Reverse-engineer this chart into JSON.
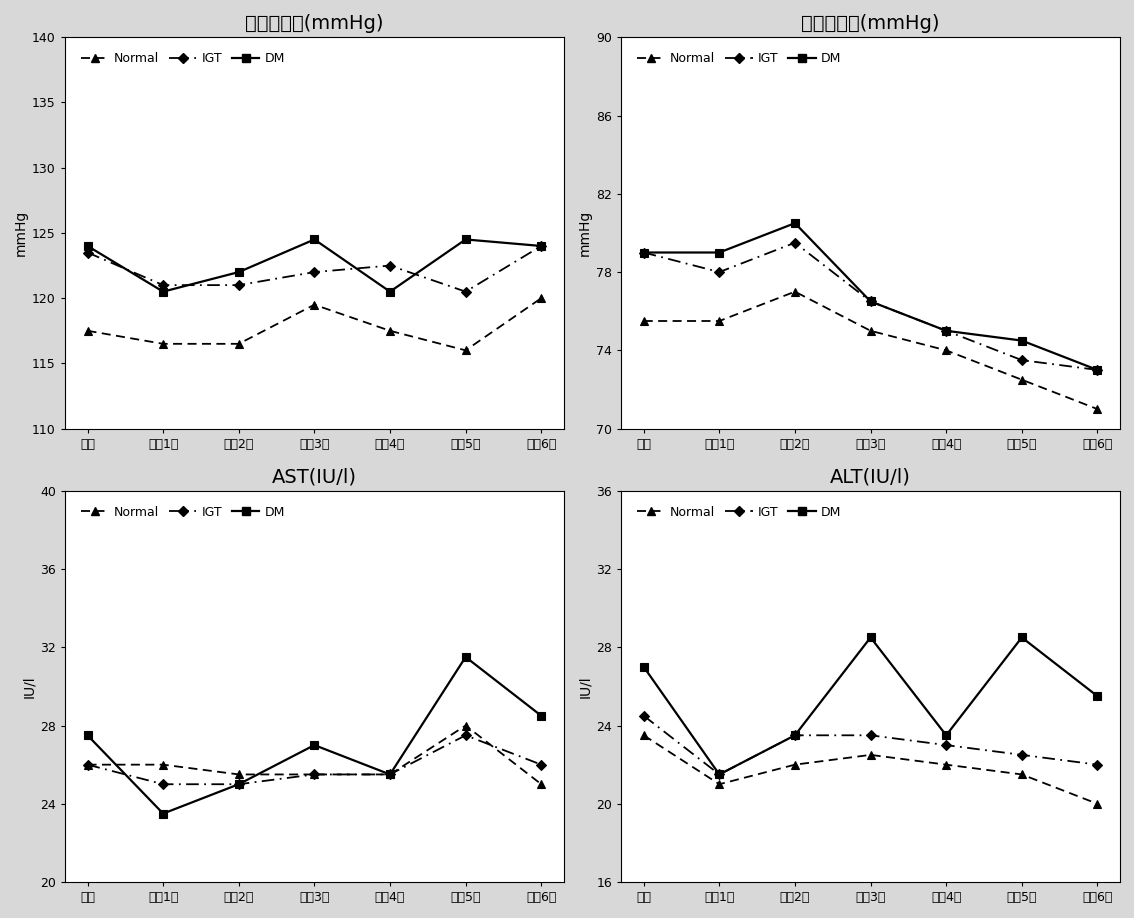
{
  "x_labels": [
    "기초",
    "추적1기",
    "추적2기",
    "추적3기",
    "추적4기",
    "추적5기",
    "추적6기"
  ],
  "plots": [
    {
      "title": "수축기혈압(mmHg)",
      "ylabel": "mmHg",
      "ylim": [
        110,
        140
      ],
      "yticks": [
        110,
        115,
        120,
        125,
        130,
        135,
        140
      ],
      "series": {
        "Normal": [
          117.5,
          116.5,
          116.5,
          119.5,
          117.5,
          116.0,
          120.0
        ],
        "IGT": [
          123.5,
          121.0,
          121.0,
          122.0,
          122.5,
          120.5,
          124.0
        ],
        "DM": [
          124.0,
          120.5,
          122.0,
          124.5,
          120.5,
          124.5,
          124.0
        ]
      }
    },
    {
      "title": "이완기혈압(mmHg)",
      "ylabel": "mmHg",
      "ylim": [
        70,
        90
      ],
      "yticks": [
        70,
        74,
        78,
        82,
        86,
        90
      ],
      "series": {
        "Normal": [
          75.5,
          75.5,
          77.0,
          75.0,
          74.0,
          72.5,
          71.0
        ],
        "IGT": [
          79.0,
          78.0,
          79.5,
          76.5,
          75.0,
          73.5,
          73.0
        ],
        "DM": [
          79.0,
          79.0,
          80.5,
          76.5,
          75.0,
          74.5,
          73.0
        ]
      }
    },
    {
      "title": "AST(IU/l)",
      "ylabel": "IU/l",
      "ylim": [
        20,
        40
      ],
      "yticks": [
        20,
        24,
        28,
        32,
        36,
        40
      ],
      "series": {
        "Normal": [
          26.0,
          26.0,
          25.5,
          25.5,
          25.5,
          28.0,
          25.0
        ],
        "IGT": [
          26.0,
          25.0,
          25.0,
          25.5,
          25.5,
          27.5,
          26.0
        ],
        "DM": [
          27.5,
          23.5,
          25.0,
          27.0,
          25.5,
          31.5,
          28.5
        ]
      }
    },
    {
      "title": "ALT(IU/l)",
      "ylabel": "IU/l",
      "ylim": [
        16,
        36
      ],
      "yticks": [
        16,
        20,
        24,
        28,
        32,
        36
      ],
      "series": {
        "Normal": [
          23.5,
          21.0,
          22.0,
          22.5,
          22.0,
          21.5,
          20.0
        ],
        "IGT": [
          24.5,
          21.5,
          23.5,
          23.5,
          23.0,
          22.5,
          22.0
        ],
        "DM": [
          27.0,
          21.5,
          23.5,
          28.5,
          23.5,
          28.5,
          25.5
        ]
      }
    }
  ],
  "series_order": [
    "Normal",
    "IGT",
    "DM"
  ],
  "series_styles": {
    "Normal": {
      "color": "#000000",
      "marker": "^",
      "markersize": 6,
      "linewidth": 1.3
    },
    "IGT": {
      "color": "#000000",
      "marker": "D",
      "markersize": 5,
      "linewidth": 1.3
    },
    "DM": {
      "color": "#000000",
      "marker": "s",
      "markersize": 6,
      "linewidth": 1.6
    }
  },
  "background_color": "#d8d8d8",
  "plot_bg_color": "#ffffff",
  "outer_bg_color": "#e8e8e8",
  "title_fontsize": 14,
  "label_fontsize": 10,
  "tick_fontsize": 9,
  "legend_fontsize": 9
}
